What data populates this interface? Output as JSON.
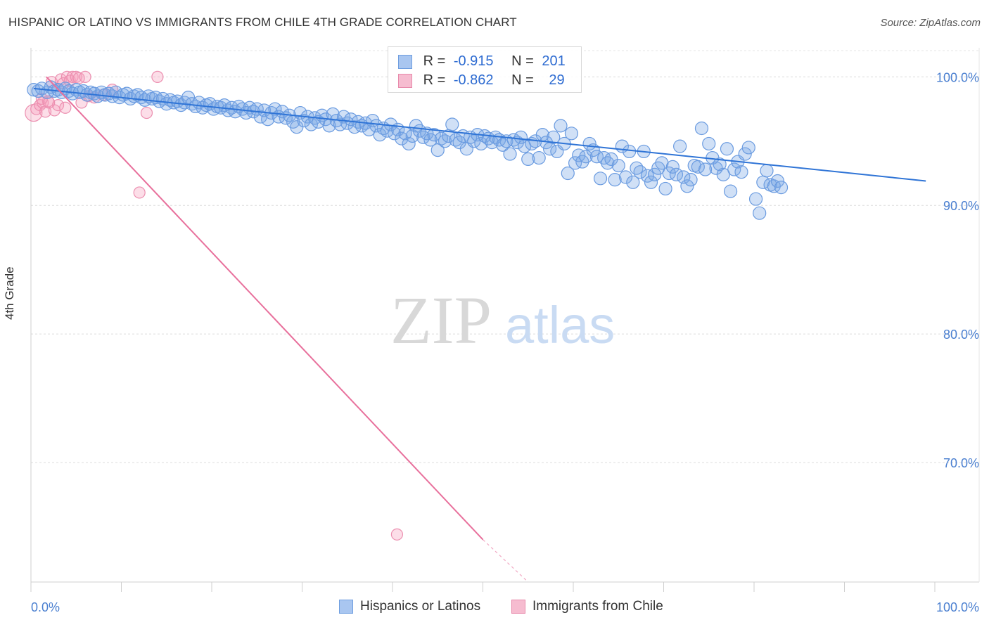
{
  "title": "HISPANIC OR LATINO VS IMMIGRANTS FROM CHILE 4TH GRADE CORRELATION CHART",
  "source": "Source: ZipAtlas.com",
  "watermark": {
    "zip": "ZIP",
    "atlas": "atlas"
  },
  "legend": {
    "rows": [
      {
        "r_label": "R =",
        "r_value": "-0.915",
        "n_label": "N =",
        "n_value": "201",
        "color": "#a9c6f0",
        "border": "#6f9ee0"
      },
      {
        "r_label": "R =",
        "r_value": "-0.862",
        "n_label": "N =",
        "n_value": "29",
        "color": "#f6bcd0",
        "border": "#e88aab"
      }
    ]
  },
  "bottom_legend": {
    "items": [
      {
        "label": "Hispanics or Latinos",
        "color": "#a9c6f0",
        "border": "#6f9ee0"
      },
      {
        "label": "Immigrants from Chile",
        "color": "#f6bcd0",
        "border": "#e88aab"
      }
    ]
  },
  "chart_data": {
    "type": "scatter",
    "ylabel": "4th Grade",
    "xlim": [
      0,
      100
    ],
    "ylim": [
      60.7,
      102.7
    ],
    "x_tick_labels": [
      "0.0%",
      "100.0%"
    ],
    "y_ticks": [
      {
        "value": 100,
        "label": "100.0%"
      },
      {
        "value": 90,
        "label": "90.0%"
      },
      {
        "value": 80,
        "label": "80.0%"
      },
      {
        "value": 70,
        "label": "70.0%"
      }
    ],
    "grid": "horizontal dashed",
    "colors": {
      "blue_fill": "rgba(120,165,230,0.35)",
      "blue_stroke": "#6a9be0",
      "blue_line": "#2f74d6",
      "pink_fill": "rgba(245,160,190,0.35)",
      "pink_stroke": "#ec8fb0",
      "pink_line": "#e8709c"
    },
    "series": [
      {
        "name": "Hispanics or Latinos",
        "trend": {
          "x0": 0.3,
          "y0": 99.1,
          "x1": 99.0,
          "y1": 91.9
        },
        "points": [
          [
            0.3,
            99.0
          ],
          [
            0.8,
            98.9
          ],
          [
            1.2,
            99.1
          ],
          [
            1.8,
            98.8
          ],
          [
            2.2,
            99.2
          ],
          [
            2.6,
            98.9
          ],
          [
            3.0,
            99.0
          ],
          [
            3.4,
            98.8
          ],
          [
            3.8,
            99.1
          ],
          [
            4.2,
            98.9
          ],
          [
            4.6,
            98.7
          ],
          [
            5.0,
            99.0
          ],
          [
            5.4,
            98.8
          ],
          [
            5.8,
            98.9
          ],
          [
            6.2,
            98.6
          ],
          [
            6.6,
            98.8
          ],
          [
            7.0,
            98.7
          ],
          [
            7.4,
            98.5
          ],
          [
            7.8,
            98.8
          ],
          [
            8.2,
            98.6
          ],
          [
            8.6,
            98.7
          ],
          [
            9.0,
            98.5
          ],
          [
            9.4,
            98.8
          ],
          [
            9.8,
            98.4
          ],
          [
            10.2,
            98.6
          ],
          [
            10.6,
            98.7
          ],
          [
            11.0,
            98.3
          ],
          [
            11.4,
            98.5
          ],
          [
            11.8,
            98.6
          ],
          [
            12.2,
            98.4
          ],
          [
            12.6,
            98.2
          ],
          [
            13.0,
            98.5
          ],
          [
            13.4,
            98.3
          ],
          [
            13.8,
            98.4
          ],
          [
            14.2,
            98.1
          ],
          [
            14.6,
            98.3
          ],
          [
            15.0,
            97.9
          ],
          [
            15.4,
            98.2
          ],
          [
            15.8,
            98.0
          ],
          [
            16.2,
            98.1
          ],
          [
            16.6,
            97.8
          ],
          [
            17.0,
            98.0
          ],
          [
            17.4,
            98.4
          ],
          [
            17.8,
            97.9
          ],
          [
            18.2,
            97.7
          ],
          [
            18.6,
            98.0
          ],
          [
            19.0,
            97.6
          ],
          [
            19.4,
            97.8
          ],
          [
            19.8,
            97.9
          ],
          [
            20.2,
            97.5
          ],
          [
            20.6,
            97.7
          ],
          [
            21.0,
            97.6
          ],
          [
            21.4,
            97.8
          ],
          [
            21.8,
            97.4
          ],
          [
            22.2,
            97.6
          ],
          [
            22.6,
            97.3
          ],
          [
            23.0,
            97.7
          ],
          [
            23.4,
            97.5
          ],
          [
            23.8,
            97.2
          ],
          [
            24.2,
            97.6
          ],
          [
            24.6,
            97.3
          ],
          [
            25.0,
            97.5
          ],
          [
            25.4,
            96.9
          ],
          [
            25.8,
            97.4
          ],
          [
            26.2,
            96.7
          ],
          [
            26.6,
            97.2
          ],
          [
            27.0,
            97.5
          ],
          [
            27.4,
            96.9
          ],
          [
            27.8,
            97.3
          ],
          [
            28.2,
            96.8
          ],
          [
            28.6,
            97.0
          ],
          [
            29.0,
            96.5
          ],
          [
            29.4,
            96.1
          ],
          [
            29.8,
            97.2
          ],
          [
            30.2,
            96.6
          ],
          [
            30.6,
            96.9
          ],
          [
            31.0,
            96.3
          ],
          [
            31.4,
            96.8
          ],
          [
            31.8,
            96.5
          ],
          [
            32.2,
            97.0
          ],
          [
            32.6,
            96.7
          ],
          [
            33.0,
            96.2
          ],
          [
            33.4,
            97.1
          ],
          [
            33.8,
            96.6
          ],
          [
            34.2,
            96.3
          ],
          [
            34.6,
            96.9
          ],
          [
            35.0,
            96.4
          ],
          [
            35.4,
            96.7
          ],
          [
            35.8,
            96.1
          ],
          [
            36.2,
            96.5
          ],
          [
            36.6,
            96.2
          ],
          [
            37.0,
            96.4
          ],
          [
            37.4,
            95.9
          ],
          [
            37.8,
            96.6
          ],
          [
            38.2,
            96.2
          ],
          [
            38.6,
            95.5
          ],
          [
            39.0,
            96.0
          ],
          [
            39.4,
            95.8
          ],
          [
            39.8,
            96.3
          ],
          [
            40.2,
            95.6
          ],
          [
            40.6,
            95.9
          ],
          [
            41.0,
            95.2
          ],
          [
            41.4,
            95.6
          ],
          [
            41.8,
            94.8
          ],
          [
            42.2,
            95.4
          ],
          [
            42.6,
            96.2
          ],
          [
            43.0,
            95.8
          ],
          [
            43.4,
            95.3
          ],
          [
            43.8,
            95.6
          ],
          [
            44.2,
            95.1
          ],
          [
            44.6,
            95.5
          ],
          [
            45.0,
            94.3
          ],
          [
            45.4,
            95.2
          ],
          [
            45.8,
            95.0
          ],
          [
            46.2,
            95.4
          ],
          [
            46.6,
            96.3
          ],
          [
            47.0,
            95.1
          ],
          [
            47.4,
            94.9
          ],
          [
            47.8,
            95.4
          ],
          [
            48.2,
            94.4
          ],
          [
            48.6,
            95.3
          ],
          [
            49.0,
            95.0
          ],
          [
            49.4,
            95.5
          ],
          [
            49.8,
            94.8
          ],
          [
            50.2,
            95.4
          ],
          [
            50.6,
            95.2
          ],
          [
            51.0,
            94.9
          ],
          [
            51.4,
            95.3
          ],
          [
            51.8,
            95.1
          ],
          [
            52.2,
            94.7
          ],
          [
            52.6,
            95.0
          ],
          [
            53.0,
            94.0
          ],
          [
            53.4,
            95.1
          ],
          [
            53.8,
            94.9
          ],
          [
            54.2,
            95.3
          ],
          [
            54.6,
            94.6
          ],
          [
            55.0,
            93.6
          ],
          [
            55.4,
            94.8
          ],
          [
            55.8,
            95.0
          ],
          [
            56.2,
            93.7
          ],
          [
            56.6,
            95.5
          ],
          [
            57.0,
            94.9
          ],
          [
            57.4,
            94.4
          ],
          [
            57.8,
            95.3
          ],
          [
            58.2,
            94.2
          ],
          [
            58.6,
            96.2
          ],
          [
            59.0,
            94.8
          ],
          [
            59.4,
            92.5
          ],
          [
            59.8,
            95.6
          ],
          [
            60.2,
            93.3
          ],
          [
            60.6,
            93.9
          ],
          [
            61.0,
            93.4
          ],
          [
            61.4,
            93.8
          ],
          [
            61.8,
            94.8
          ],
          [
            62.2,
            94.3
          ],
          [
            62.6,
            93.8
          ],
          [
            63.0,
            92.1
          ],
          [
            63.4,
            93.7
          ],
          [
            63.8,
            93.3
          ],
          [
            64.2,
            93.6
          ],
          [
            64.6,
            92.0
          ],
          [
            65.0,
            93.1
          ],
          [
            65.4,
            94.6
          ],
          [
            65.8,
            92.2
          ],
          [
            66.2,
            94.2
          ],
          [
            66.6,
            91.8
          ],
          [
            67.0,
            92.9
          ],
          [
            67.4,
            92.6
          ],
          [
            67.8,
            94.2
          ],
          [
            68.2,
            92.3
          ],
          [
            68.6,
            91.8
          ],
          [
            69.0,
            92.4
          ],
          [
            69.4,
            92.9
          ],
          [
            69.8,
            93.3
          ],
          [
            70.2,
            91.3
          ],
          [
            70.6,
            92.5
          ],
          [
            71.0,
            93.0
          ],
          [
            71.4,
            92.4
          ],
          [
            71.8,
            94.6
          ],
          [
            72.2,
            92.2
          ],
          [
            72.6,
            91.5
          ],
          [
            73.0,
            92.0
          ],
          [
            73.4,
            93.1
          ],
          [
            73.8,
            93.0
          ],
          [
            74.2,
            96.0
          ],
          [
            74.6,
            92.8
          ],
          [
            75.0,
            94.8
          ],
          [
            75.4,
            93.7
          ],
          [
            75.8,
            92.9
          ],
          [
            76.2,
            93.2
          ],
          [
            76.6,
            92.4
          ],
          [
            77.0,
            94.4
          ],
          [
            77.4,
            91.1
          ],
          [
            77.8,
            92.8
          ],
          [
            78.2,
            93.4
          ],
          [
            78.6,
            92.6
          ],
          [
            79.0,
            94.0
          ],
          [
            79.4,
            94.5
          ],
          [
            80.2,
            90.5
          ],
          [
            80.6,
            89.4
          ],
          [
            81.0,
            91.8
          ],
          [
            81.4,
            92.7
          ],
          [
            81.8,
            91.6
          ],
          [
            82.2,
            91.5
          ],
          [
            82.6,
            91.9
          ],
          [
            83.0,
            91.4
          ]
        ]
      },
      {
        "name": "Immigrants from Chile",
        "trend": {
          "x0": 1.7,
          "y0": 100.0,
          "x1": 50.0,
          "y1": 64.0,
          "dash_x1": 55.0,
          "dash_y1": 60.7
        },
        "points": [
          [
            0.3,
            97.2
          ],
          [
            0.6,
            97.5
          ],
          [
            1.0,
            97.8
          ],
          [
            1.3,
            98.0
          ],
          [
            1.6,
            97.3
          ],
          [
            1.9,
            98.1
          ],
          [
            2.3,
            99.6
          ],
          [
            2.6,
            97.4
          ],
          [
            3.0,
            97.8
          ],
          [
            3.3,
            99.8
          ],
          [
            3.6,
            99.5
          ],
          [
            4.0,
            100.0
          ],
          [
            4.3,
            99.7
          ],
          [
            4.6,
            100.0
          ],
          [
            5.0,
            100.0
          ],
          [
            5.3,
            99.9
          ],
          [
            5.6,
            98.0
          ],
          [
            6.0,
            100.0
          ],
          [
            6.4,
            98.5
          ],
          [
            7.0,
            98.4
          ],
          [
            8.0,
            98.6
          ],
          [
            9.0,
            99.0
          ],
          [
            12.0,
            91.0
          ],
          [
            12.8,
            97.2
          ],
          [
            14.0,
            100.0
          ],
          [
            1.2,
            98.3
          ],
          [
            2.0,
            98.0
          ],
          [
            3.8,
            97.6
          ],
          [
            40.5,
            64.4
          ]
        ]
      }
    ]
  }
}
